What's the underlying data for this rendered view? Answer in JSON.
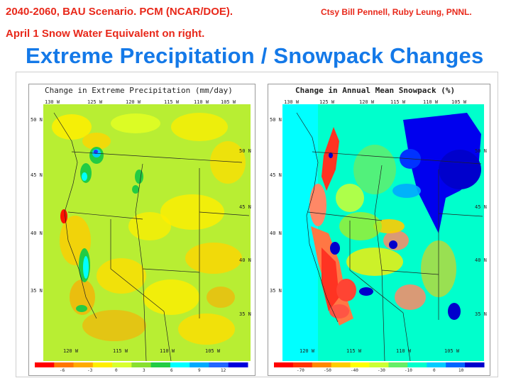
{
  "header": {
    "left": "2040-2060, BAU Scenario.  PCM (NCAR/DOE).",
    "right": "Ctsy Bill Pennell, Ruby Leung, PNNL.",
    "second": "April 1 Snow Water Equivalent on right."
  },
  "main_title": "Extreme Precipitation /  Snowpack Changes",
  "maps": {
    "left": {
      "title": "Change in Extreme Precipitation (mm/day)",
      "top_lon_labels": [
        "130 W",
        "125 W",
        "120 W",
        "115 W",
        "110 W",
        "105 W"
      ],
      "bottom_lon_labels": [
        "120 W",
        "115 W",
        "110 W",
        "105 W"
      ],
      "left_lat_labels": [
        "50 N",
        "45 N",
        "40 N",
        "35 N"
      ],
      "right_lat_labels": [
        "50 N",
        "45 N",
        "40 N",
        "35 N"
      ],
      "colorbar_colors": [
        "#ff0000",
        "#ff7700",
        "#ffaa00",
        "#ffee00",
        "#d8ff30",
        "#88e030",
        "#22cc44",
        "#00ffff",
        "#00aaff",
        "#2266ff",
        "#0000dd"
      ],
      "colorbar_labels": [
        "-6",
        "-3",
        "0",
        "3",
        "6",
        "9",
        "12"
      ]
    },
    "right": {
      "title": "Change in Annual Mean Snowpack (%)",
      "top_lon_labels": [
        "130 W",
        "125 W",
        "120 W",
        "115 W",
        "110 W",
        "105 W"
      ],
      "bottom_lon_labels": [
        "120 W",
        "115 W",
        "110 W",
        "105 W"
      ],
      "left_lat_labels": [
        "50 N",
        "45 N",
        "40 N",
        "35 N"
      ],
      "right_lat_labels": [
        "50 N",
        "45 N",
        "40 N",
        "35 N"
      ],
      "colorbar_colors": [
        "#ff0000",
        "#ff3300",
        "#ff8800",
        "#ffcc00",
        "#ffff00",
        "#ccff33",
        "#66ee66",
        "#00ffcc",
        "#00ccff",
        "#0066ff",
        "#0000cc"
      ],
      "colorbar_labels": [
        "-70",
        "-50",
        "-40",
        "-30",
        "-10",
        "0",
        "10"
      ]
    }
  }
}
